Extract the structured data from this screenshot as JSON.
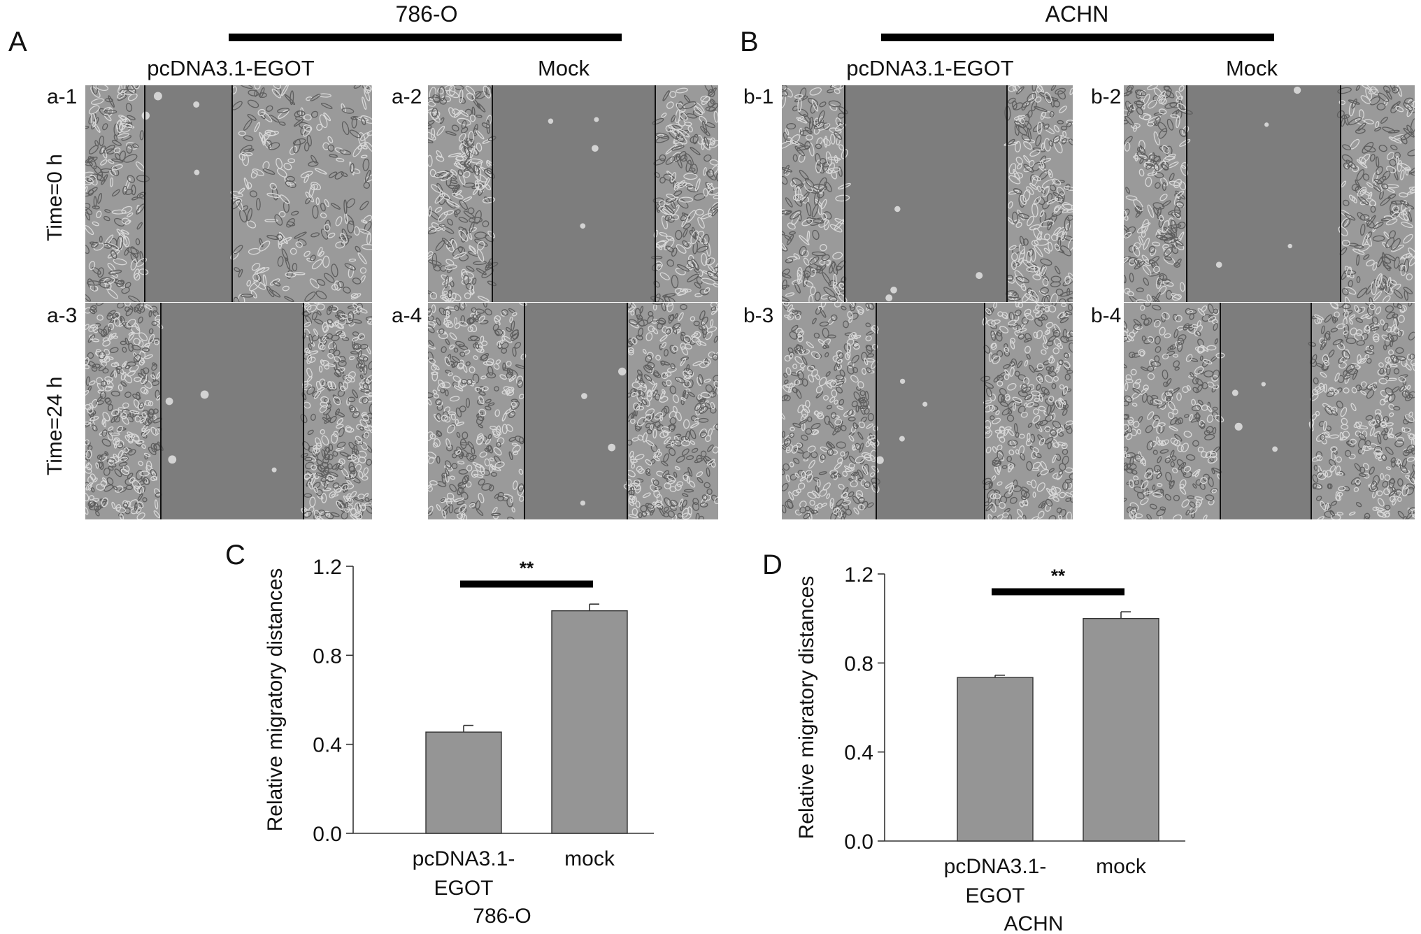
{
  "figure": {
    "panels": {
      "A": {
        "letter": "A",
        "cell_line": "786-O",
        "conditions": [
          "pcDNA3.1-EGOT",
          "Mock"
        ],
        "images": [
          "a-1",
          "a-2",
          "a-3",
          "a-4"
        ]
      },
      "B": {
        "letter": "B",
        "cell_line": "ACHN",
        "conditions": [
          "pcDNA3.1-EGOT",
          "Mock"
        ],
        "images": [
          "b-1",
          "b-2",
          "b-3",
          "b-4"
        ]
      }
    },
    "time_labels": [
      "Time=0 h",
      "Time=24 h"
    ],
    "colors": {
      "bar_fill": "#959595",
      "gap_region": "#7d7d7d",
      "cell_texture": "#d8d8d8"
    }
  },
  "chart_data": [
    {
      "letter": "C",
      "type": "bar",
      "categories": [
        "pcDNA3.1-EGOT",
        "mock"
      ],
      "category_lines": [
        [
          "pcDNA3.1-",
          "EGOT"
        ],
        [
          "mock"
        ]
      ],
      "values": [
        0.455,
        1.0
      ],
      "errors": [
        0.03,
        0.03
      ],
      "ylabel": "Relative migratory distances",
      "xlabel": "786-O",
      "ylim": [
        0,
        1.2
      ],
      "yticks": [
        "0.0",
        "0.4",
        "0.8",
        "1.2"
      ],
      "significance": "**",
      "grid": false
    },
    {
      "letter": "D",
      "type": "bar",
      "categories": [
        "pcDNA3.1-EGOT",
        "mock"
      ],
      "category_lines": [
        [
          "pcDNA3.1-",
          "EGOT"
        ],
        [
          "mock"
        ]
      ],
      "values": [
        0.735,
        1.0
      ],
      "errors": [
        0.01,
        0.03
      ],
      "ylabel": "Relative migratory distances",
      "xlabel": "ACHN",
      "ylim": [
        0,
        1.2
      ],
      "yticks": [
        "0.0",
        "0.4",
        "0.8",
        "1.2"
      ],
      "significance": "**",
      "grid": false
    }
  ]
}
